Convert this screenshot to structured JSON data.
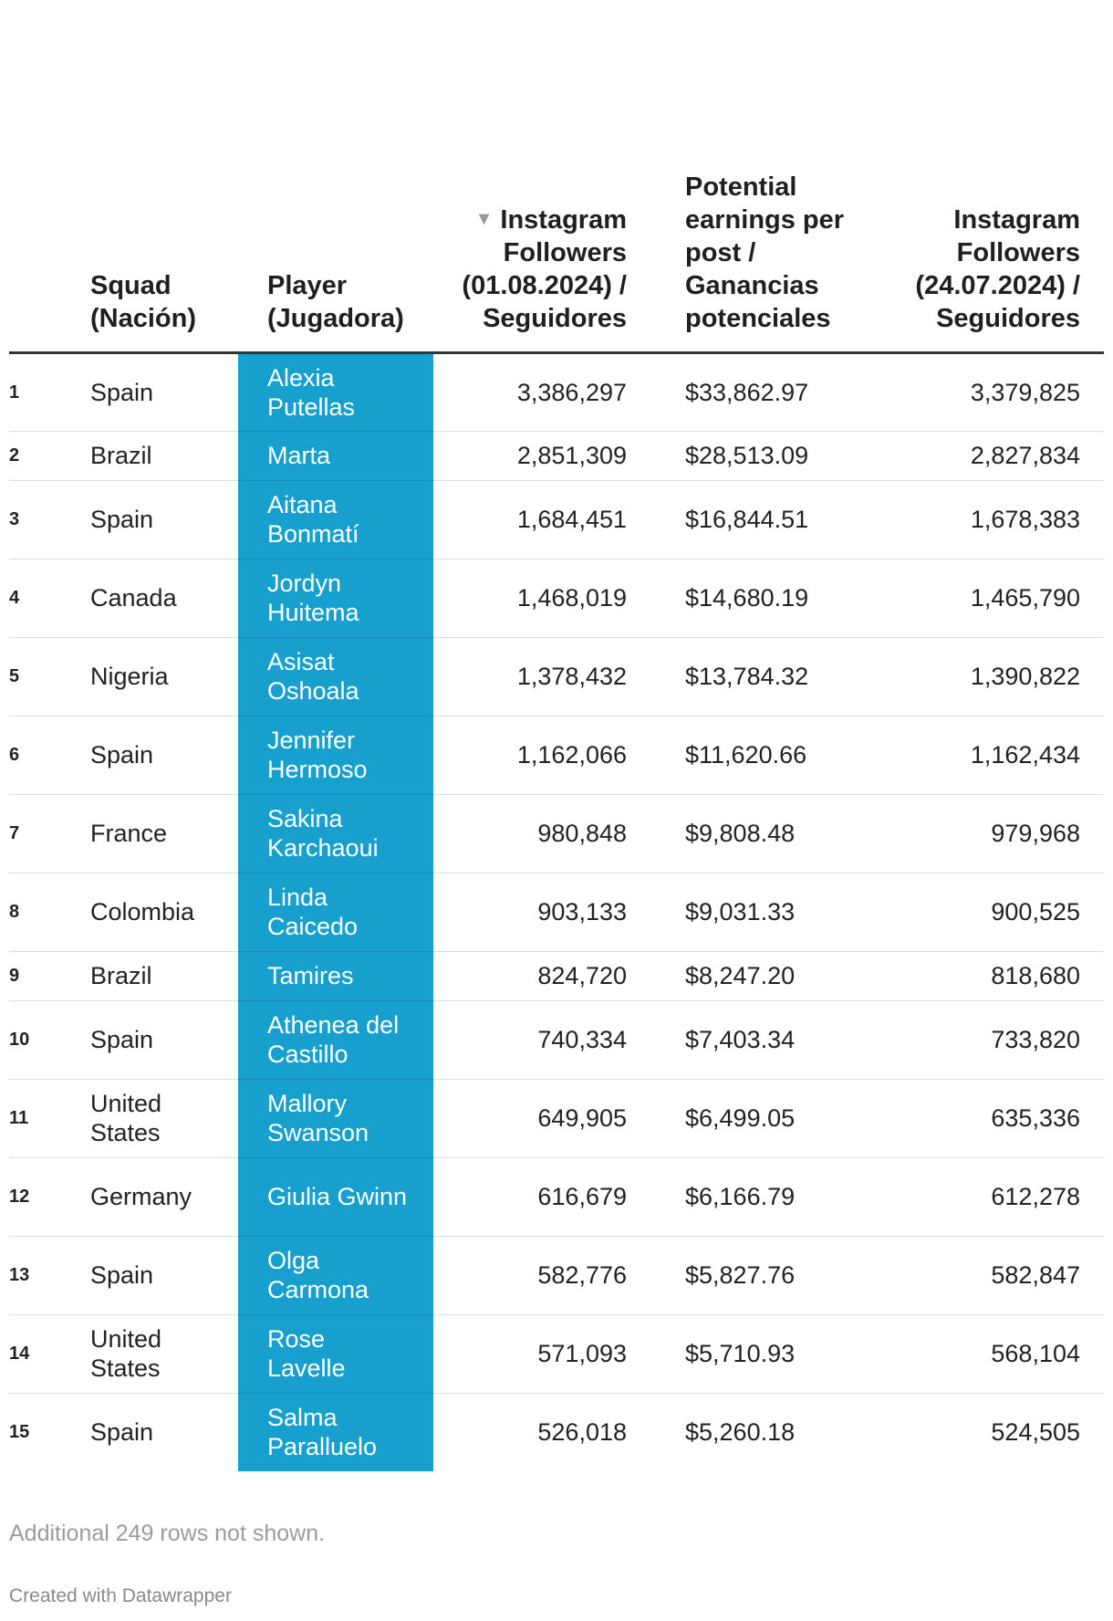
{
  "chart_data": {
    "type": "table",
    "columns": [
      {
        "key": "rank",
        "label": ""
      },
      {
        "key": "squad",
        "label": "Squad (Nación)"
      },
      {
        "key": "player",
        "label": "Player (Jugadora)"
      },
      {
        "key": "followers_0108",
        "label": "Instagram Followers (01.08.2024) / Seguidores",
        "sorted": "descending"
      },
      {
        "key": "earnings",
        "label": "Potential earnings per post / Ganancias potenciales"
      },
      {
        "key": "followers_2407",
        "label": "Instagram Followers (24.07.2024) / Seguidores"
      }
    ],
    "rows": [
      {
        "rank": "1",
        "squad": "Spain",
        "player": "Alexia Putellas",
        "followers_0108": "3,386,297",
        "earnings": "$33,862.97",
        "followers_2407": "3,379,825"
      },
      {
        "rank": "2",
        "squad": "Brazil",
        "player": "Marta",
        "followers_0108": "2,851,309",
        "earnings": "$28,513.09",
        "followers_2407": "2,827,834"
      },
      {
        "rank": "3",
        "squad": "Spain",
        "player": "Aitana Bonmatí",
        "followers_0108": "1,684,451",
        "earnings": "$16,844.51",
        "followers_2407": "1,678,383"
      },
      {
        "rank": "4",
        "squad": "Canada",
        "player": "Jordyn Huitema",
        "followers_0108": "1,468,019",
        "earnings": "$14,680.19",
        "followers_2407": "1,465,790"
      },
      {
        "rank": "5",
        "squad": "Nigeria",
        "player": "Asisat Oshoala",
        "followers_0108": "1,378,432",
        "earnings": "$13,784.32",
        "followers_2407": "1,390,822"
      },
      {
        "rank": "6",
        "squad": "Spain",
        "player": "Jennifer Hermoso",
        "followers_0108": "1,162,066",
        "earnings": "$11,620.66",
        "followers_2407": "1,162,434"
      },
      {
        "rank": "7",
        "squad": "France",
        "player": "Sakina Karchaoui",
        "followers_0108": "980,848",
        "earnings": "$9,808.48",
        "followers_2407": "979,968"
      },
      {
        "rank": "8",
        "squad": "Colombia",
        "player": "Linda Caicedo",
        "followers_0108": "903,133",
        "earnings": "$9,031.33",
        "followers_2407": "900,525"
      },
      {
        "rank": "9",
        "squad": "Brazil",
        "player": "Tamires",
        "followers_0108": "824,720",
        "earnings": "$8,247.20",
        "followers_2407": "818,680"
      },
      {
        "rank": "10",
        "squad": "Spain",
        "player": "Athenea del Castillo",
        "followers_0108": "740,334",
        "earnings": "$7,403.34",
        "followers_2407": "733,820"
      },
      {
        "rank": "11",
        "squad": "United States",
        "player": "Mallory Swanson",
        "followers_0108": "649,905",
        "earnings": "$6,499.05",
        "followers_2407": "635,336"
      },
      {
        "rank": "12",
        "squad": "Germany",
        "player": "Giulia Gwinn",
        "followers_0108": "616,679",
        "earnings": "$6,166.79",
        "followers_2407": "612,278"
      },
      {
        "rank": "13",
        "squad": "Spain",
        "player": "Olga Carmona",
        "followers_0108": "582,776",
        "earnings": "$5,827.76",
        "followers_2407": "582,847"
      },
      {
        "rank": "14",
        "squad": "United States",
        "player": "Rose Lavelle",
        "followers_0108": "571,093",
        "earnings": "$5,710.93",
        "followers_2407": "568,104"
      },
      {
        "rank": "15",
        "squad": "Spain",
        "player": "Salma Paralluelo",
        "followers_0108": "526,018",
        "earnings": "$5,260.18",
        "followers_2407": "524,505"
      }
    ],
    "highlight_color": "#17a0ce"
  },
  "footer": {
    "note": "Additional 249 rows not shown.",
    "credit": "Created with Datawrapper"
  }
}
